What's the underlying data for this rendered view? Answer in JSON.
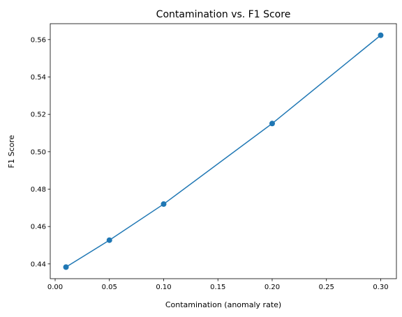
{
  "chart_data": {
    "type": "line",
    "title": "Contamination vs. F1 Score",
    "xlabel": "Contamination (anomaly rate)",
    "ylabel": "F1 Score",
    "x": [
      0.01,
      0.05,
      0.1,
      0.2,
      0.3
    ],
    "series": [
      {
        "values": [
          0.4383,
          0.4527,
          0.472,
          0.5151,
          0.5623
        ],
        "color": "#1f77b4",
        "marker": "circle"
      }
    ],
    "xlim": [
      -0.0045,
      0.3145
    ],
    "ylim": [
      0.4321,
      0.5685
    ],
    "xticks": [
      0.0,
      0.05,
      0.1,
      0.15,
      0.2,
      0.25,
      0.3
    ],
    "xtick_labels": [
      "0.00",
      "0.05",
      "0.10",
      "0.15",
      "0.20",
      "0.25",
      "0.30"
    ],
    "yticks": [
      0.44,
      0.46,
      0.48,
      0.5,
      0.52,
      0.54,
      0.56
    ],
    "ytick_labels": [
      "0.44",
      "0.46",
      "0.48",
      "0.50",
      "0.52",
      "0.54",
      "0.56"
    ],
    "grid": false,
    "legend": "none"
  }
}
